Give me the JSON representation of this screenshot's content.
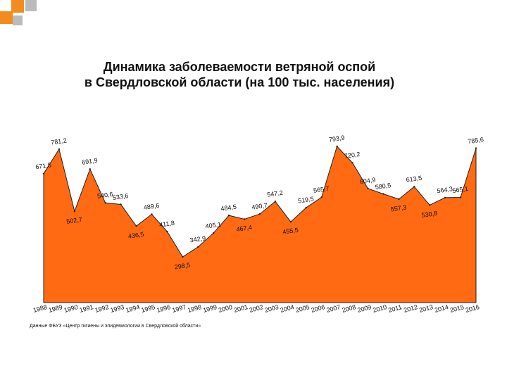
{
  "title_lines": [
    "Динамика заболеваемости ветряной оспой",
    "в Свердловской области (на 100 тыс. населения)"
  ],
  "source_note": "Данные ФБУЗ «Центр гигиены и эпидемиологии в Свердловской области»",
  "colors": {
    "fill": "#ff6a13",
    "stroke": "#222222",
    "label": "#111111",
    "deco_orange": "#f28c1e",
    "deco_gray": "#bbbbbb"
  },
  "chart_data": {
    "type": "area",
    "title": "Динамика заболеваемости ветряной оспой в Свердловской области (на 100 тыс. населения)",
    "x": [
      "1988",
      "1989",
      "1990",
      "1991",
      "1992",
      "1993",
      "1994",
      "1995",
      "1996",
      "1997",
      "1998",
      "1999",
      "2000",
      "2001",
      "2002",
      "2003",
      "2004",
      "2005",
      "2006",
      "2007",
      "2008",
      "2009",
      "2010",
      "2011",
      "2012",
      "2013",
      "2014",
      "2015",
      "2016"
    ],
    "values": [
      671.5,
      781.2,
      502.7,
      691.9,
      540.6,
      533.6,
      436.5,
      489.6,
      411.8,
      298.5,
      342.9,
      405.1,
      484.5,
      467.4,
      490.7,
      547.2,
      455.5,
      519.5,
      565.7,
      793.9,
      720.2,
      604.9,
      580.5,
      557.3,
      613.5,
      530.8,
      564.3,
      565.1,
      785.6
    ],
    "labels": [
      "671,5",
      "781,2",
      "502,7",
      "691,9",
      "540,6",
      "533,6",
      "436,5",
      "489,6",
      "411,8",
      "298,5",
      "342,9",
      "405,1",
      "484,5",
      "467,4",
      "490,7",
      "547,2",
      "455,5",
      "519,5",
      "565,7",
      "793,9",
      "720,2",
      "604,9",
      "580,5",
      "557,3",
      "613,5",
      "530,8",
      "564,3",
      "565,1",
      "785,6"
    ],
    "ylim": [
      0,
      820
    ],
    "grid": false,
    "legend": "none"
  }
}
